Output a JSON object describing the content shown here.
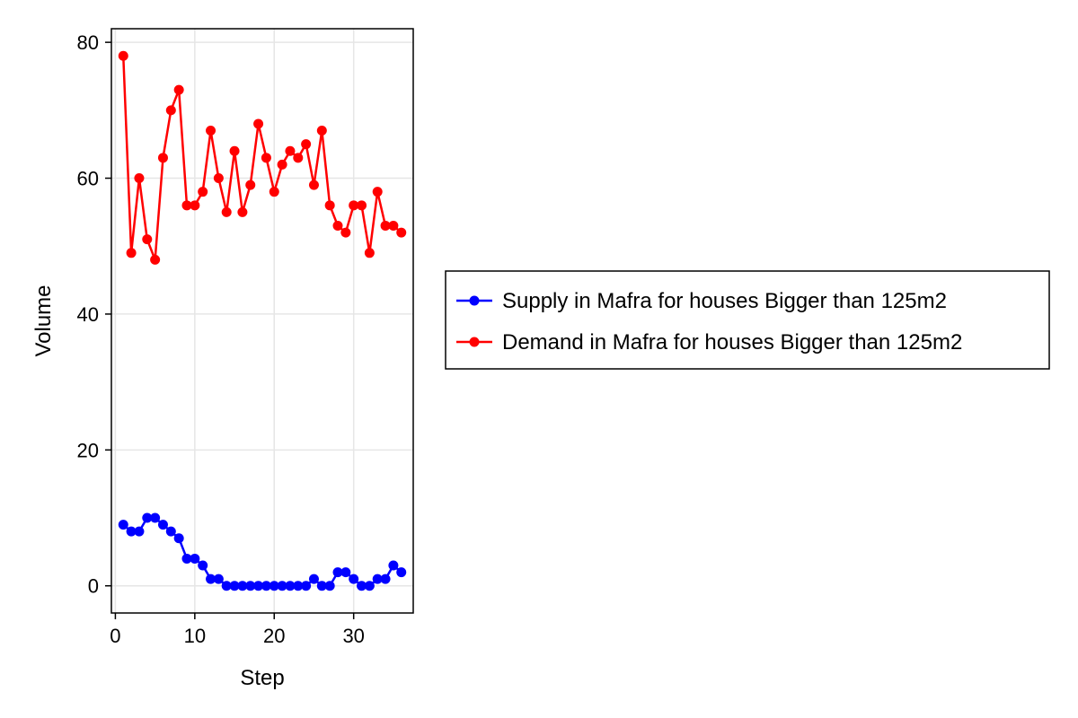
{
  "chart_data": {
    "type": "line",
    "title": "",
    "xlabel": "Step",
    "ylabel": "Volume",
    "xlim": [
      -0.5,
      37.5
    ],
    "ylim": [
      -4,
      82
    ],
    "xticks": [
      0,
      10,
      20,
      30
    ],
    "yticks": [
      0,
      20,
      40,
      60,
      80
    ],
    "grid": true,
    "legend_position": "right",
    "x": [
      1,
      2,
      3,
      4,
      5,
      6,
      7,
      8,
      9,
      10,
      11,
      12,
      13,
      14,
      15,
      16,
      17,
      18,
      19,
      20,
      21,
      22,
      23,
      24,
      25,
      26,
      27,
      28,
      29,
      30,
      31,
      32,
      33,
      34,
      35,
      36
    ],
    "series": [
      {
        "name": "Supply in Mafra for houses Bigger than 125m2",
        "color": "#0000ff",
        "marker": "circle",
        "values": [
          9,
          8,
          8,
          10,
          10,
          9,
          8,
          7,
          4,
          4,
          3,
          1,
          1,
          0,
          0,
          0,
          0,
          0,
          0,
          0,
          0,
          0,
          0,
          0,
          1,
          0,
          0,
          2,
          2,
          1,
          0,
          0,
          1,
          1,
          3,
          2
        ]
      },
      {
        "name": "Demand in Mafra for houses Bigger than 125m2",
        "color": "#ff0000",
        "marker": "circle",
        "values": [
          78,
          49,
          60,
          51,
          48,
          63,
          70,
          73,
          56,
          56,
          58,
          67,
          60,
          55,
          64,
          55,
          59,
          68,
          63,
          58,
          62,
          64,
          63,
          65,
          59,
          67,
          56,
          53,
          52,
          56,
          56,
          49,
          58,
          53,
          53,
          52
        ]
      }
    ]
  }
}
